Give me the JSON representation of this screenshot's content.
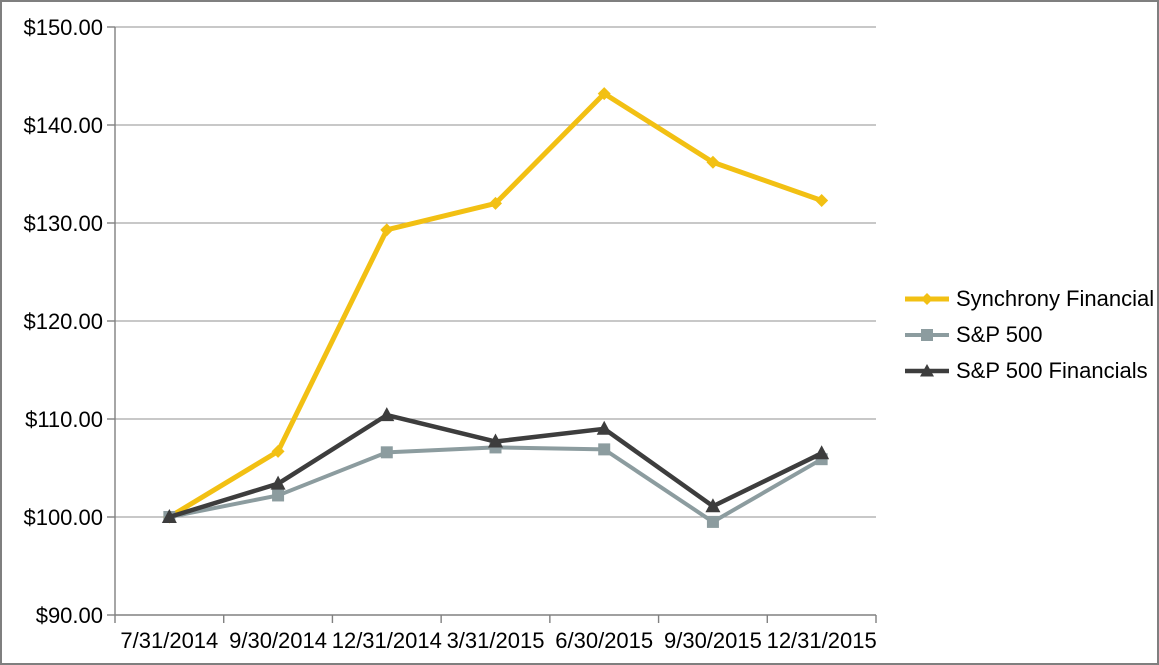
{
  "chart_data": {
    "type": "line",
    "title": "",
    "xlabel": "",
    "ylabel": "",
    "categories": [
      "7/31/2014",
      "9/30/2014",
      "12/31/2014",
      "3/31/2015",
      "6/30/2015",
      "9/30/2015",
      "12/31/2015"
    ],
    "series": [
      {
        "name": "Synchrony Financial",
        "marker": "diamond",
        "color": "#F2C013",
        "line_width": 5,
        "values": [
          100.0,
          106.7,
          129.3,
          132.0,
          143.2,
          136.2,
          132.3
        ]
      },
      {
        "name": "S&P 500",
        "marker": "square",
        "color": "#8C9C9F",
        "line_width": 4,
        "values": [
          100.0,
          102.2,
          106.6,
          107.1,
          106.9,
          99.5,
          105.9
        ]
      },
      {
        "name": "S&P 500 Financials",
        "marker": "triangle",
        "color": "#3D3D3D",
        "line_width": 4.5,
        "values": [
          100.0,
          103.4,
          110.4,
          107.7,
          109.0,
          101.1,
          106.5
        ]
      }
    ],
    "ylim": [
      90,
      150
    ],
    "y_tick_step": 10,
    "y_tick_labels": [
      "$90.00",
      "$100.00",
      "$110.00",
      "$120.00",
      "$130.00",
      "$140.00",
      "$150.00"
    ],
    "grid": true,
    "legend_position": "right",
    "colors": {
      "gridline": "#A6A6A6",
      "axis": "#808080",
      "text": "#000000",
      "border": "#7F7F7F",
      "background": "#FFFFFF"
    }
  }
}
